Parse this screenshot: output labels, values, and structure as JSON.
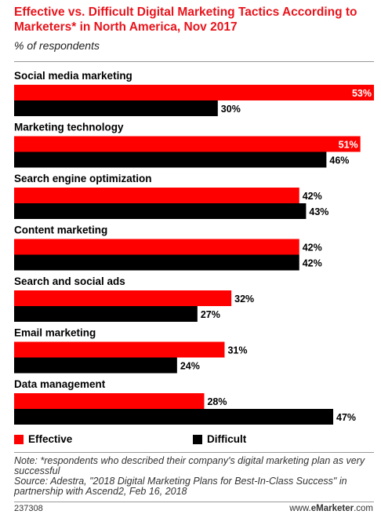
{
  "header": {
    "title": "Effective vs. Difficult Digital Marketing Tactics According to Marketers* in North America, Nov 2017",
    "subtitle": "% of respondents"
  },
  "chart_data": {
    "type": "bar",
    "orientation": "horizontal",
    "categories": [
      "Social media marketing",
      "Marketing technology",
      "Search engine optimization",
      "Content marketing",
      "Search and social ads",
      "Email marketing",
      "Data management"
    ],
    "series": [
      {
        "name": "Effective",
        "color": "#ff0000",
        "values": [
          53,
          51,
          42,
          42,
          32,
          31,
          28
        ]
      },
      {
        "name": "Difficult",
        "color": "#000000",
        "values": [
          30,
          46,
          43,
          42,
          27,
          24,
          47
        ]
      }
    ],
    "value_suffix": "%",
    "xlim": [
      0,
      53
    ],
    "legend_position": "bottom"
  },
  "legend": {
    "effective_label": "Effective",
    "difficult_label": "Difficult"
  },
  "footer": {
    "note": "Note: *respondents who described their company's digital marketing plan as very successful",
    "source": "Source: Adestra, \"2018 Digital Marketing Plans for Best-In-Class Success\" in partnership with Ascend2, Feb 16, 2018",
    "chart_id": "237308",
    "brand_prefix": "www.",
    "brand_bold": "eMarketer",
    "brand_suffix": ".com"
  }
}
